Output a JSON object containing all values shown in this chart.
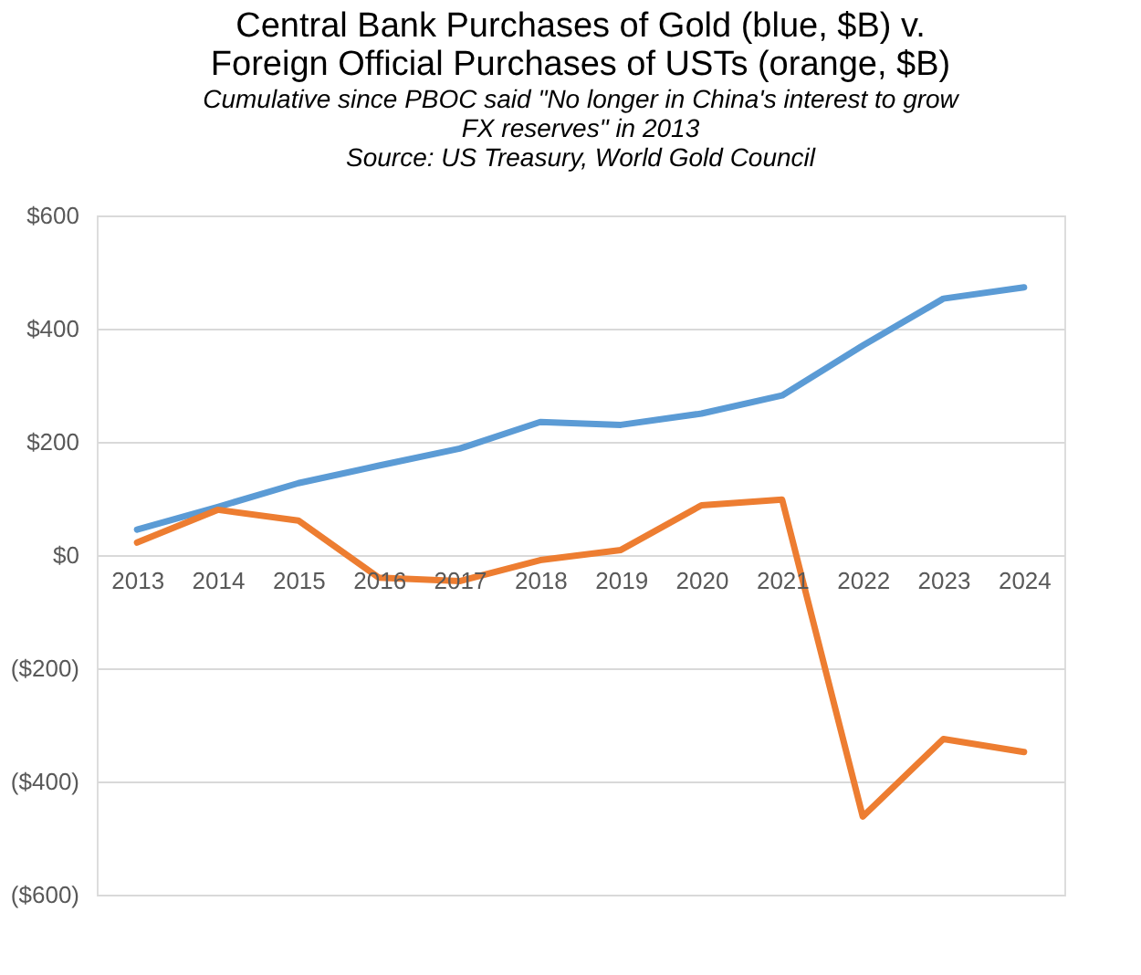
{
  "chart_data": {
    "type": "line",
    "title": "Central Bank Purchases of Gold (blue, $B) v.\nForeign Official Purchases of USTs (orange, $B)",
    "subtitle": "Cumulative since PBOC said \"No longer in China's interest to grow\nFX reserves\" in 2013",
    "annotations": [
      "Source: US Treasury, World Gold Council"
    ],
    "categories": [
      "2013",
      "2014",
      "2015",
      "2016",
      "2017",
      "2018",
      "2019",
      "2020",
      "2021",
      "2022",
      "2023",
      "2024"
    ],
    "series": [
      {
        "color": "#5b9bd5",
        "values": [
          45,
          85,
          127,
          158,
          188,
          235,
          230,
          250,
          282,
          370,
          453,
          473
        ]
      },
      {
        "color": "#ed7d31",
        "values": [
          22,
          80,
          61,
          -40,
          -46,
          -9,
          9,
          88,
          98,
          -462,
          -325,
          -348
        ]
      }
    ],
    "ylim": [
      -600,
      600
    ],
    "yticks": [
      {
        "value": -600,
        "label": "($600)"
      },
      {
        "value": -400,
        "label": "($400)"
      },
      {
        "value": -200,
        "label": "($200)"
      },
      {
        "value": 0,
        "label": "$0"
      },
      {
        "value": 200,
        "label": "$200"
      },
      {
        "value": 400,
        "label": "$400"
      },
      {
        "value": 600,
        "label": "$600"
      }
    ],
    "grid": "y",
    "legend": false,
    "marker": "none",
    "line_style": "solid"
  }
}
